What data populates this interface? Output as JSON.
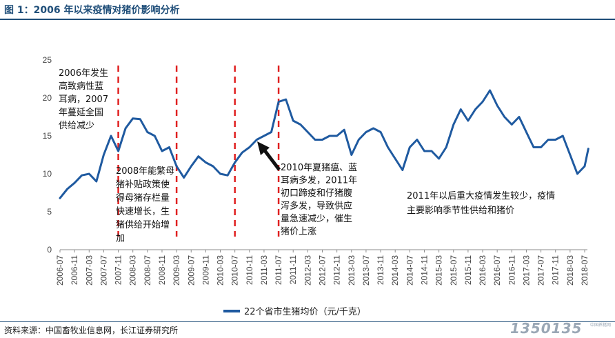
{
  "header": {
    "title": "图 1：2006 年以来疫情对猪价影响分析"
  },
  "footer": {
    "source": "资料来源：中国畜牧业信息网，长江证券研究所"
  },
  "watermark": {
    "text": "1350135",
    "sub": "中国养猪网"
  },
  "chart_data": {
    "type": "line",
    "title": "",
    "xlabel": "",
    "ylabel": "",
    "ylim": [
      0,
      25
    ],
    "yticks": [
      0,
      5,
      10,
      15,
      20,
      25
    ],
    "grid": false,
    "legend": "bottom",
    "line_color": "#1f5aa0",
    "marker_color": "#e02020",
    "x_tick_labels": [
      "2006-07",
      "2006-11",
      "2007-03",
      "2007-07",
      "2007-11",
      "2008-03",
      "2008-07",
      "2008-11",
      "2009-03",
      "2009-07",
      "2009-11",
      "2010-03",
      "2010-07",
      "2010-11",
      "2011-03",
      "2011-07",
      "2011-11",
      "2012-03",
      "2012-07",
      "2012-11",
      "2013-03",
      "2013-07",
      "2013-11",
      "2014-03",
      "2014-07",
      "2014-11",
      "2015-03",
      "2015-07",
      "2015-11",
      "2016-03",
      "2016-07",
      "2016-11",
      "2017-03",
      "2017-07",
      "2017-11",
      "2018-03",
      "2018-07"
    ],
    "series": [
      {
        "name": "22个省市生猪均价（元/千克）",
        "points": [
          [
            "2006-07",
            6.8
          ],
          [
            "2006-09",
            8.0
          ],
          [
            "2006-11",
            8.8
          ],
          [
            "2007-01",
            9.8
          ],
          [
            "2007-03",
            10.0
          ],
          [
            "2007-05",
            9.0
          ],
          [
            "2007-07",
            12.5
          ],
          [
            "2007-09",
            15.0
          ],
          [
            "2007-11",
            13.0
          ],
          [
            "2008-01",
            16.0
          ],
          [
            "2008-03",
            17.3
          ],
          [
            "2008-05",
            17.2
          ],
          [
            "2008-07",
            15.5
          ],
          [
            "2008-09",
            15.0
          ],
          [
            "2008-11",
            13.0
          ],
          [
            "2009-01",
            13.5
          ],
          [
            "2009-03",
            11.0
          ],
          [
            "2009-05",
            9.5
          ],
          [
            "2009-07",
            11.0
          ],
          [
            "2009-09",
            12.3
          ],
          [
            "2009-11",
            11.5
          ],
          [
            "2010-01",
            11.0
          ],
          [
            "2010-03",
            10.0
          ],
          [
            "2010-05",
            9.8
          ],
          [
            "2010-07",
            11.5
          ],
          [
            "2010-09",
            12.8
          ],
          [
            "2010-11",
            13.5
          ],
          [
            "2011-01",
            14.5
          ],
          [
            "2011-03",
            15.0
          ],
          [
            "2011-05",
            15.5
          ],
          [
            "2011-07",
            19.5
          ],
          [
            "2011-09",
            19.8
          ],
          [
            "2011-11",
            17.0
          ],
          [
            "2012-01",
            16.5
          ],
          [
            "2012-03",
            15.5
          ],
          [
            "2012-05",
            14.5
          ],
          [
            "2012-07",
            14.5
          ],
          [
            "2012-09",
            15.0
          ],
          [
            "2012-11",
            15.0
          ],
          [
            "2013-01",
            15.8
          ],
          [
            "2013-03",
            12.5
          ],
          [
            "2013-05",
            14.5
          ],
          [
            "2013-07",
            15.5
          ],
          [
            "2013-09",
            16.0
          ],
          [
            "2013-11",
            15.5
          ],
          [
            "2014-01",
            13.5
          ],
          [
            "2014-03",
            12.0
          ],
          [
            "2014-05",
            10.5
          ],
          [
            "2014-07",
            13.5
          ],
          [
            "2014-09",
            14.5
          ],
          [
            "2014-11",
            13.0
          ],
          [
            "2015-01",
            13.0
          ],
          [
            "2015-03",
            12.0
          ],
          [
            "2015-05",
            13.5
          ],
          [
            "2015-07",
            16.5
          ],
          [
            "2015-09",
            18.5
          ],
          [
            "2015-11",
            17.0
          ],
          [
            "2016-01",
            18.5
          ],
          [
            "2016-03",
            19.5
          ],
          [
            "2016-05",
            21.0
          ],
          [
            "2016-07",
            19.0
          ],
          [
            "2016-09",
            17.5
          ],
          [
            "2016-11",
            16.5
          ],
          [
            "2017-01",
            17.5
          ],
          [
            "2017-03",
            15.5
          ],
          [
            "2017-05",
            13.5
          ],
          [
            "2017-07",
            13.5
          ],
          [
            "2017-09",
            14.5
          ],
          [
            "2017-11",
            14.5
          ],
          [
            "2018-01",
            15.0
          ],
          [
            "2018-03",
            12.5
          ],
          [
            "2018-05",
            10.0
          ],
          [
            "2018-07",
            11.0
          ],
          [
            "2018-08",
            13.3
          ]
        ]
      }
    ],
    "markers_x": [
      "2007-11",
      "2009-03",
      "2010-07",
      "2011-07"
    ],
    "annotations": [
      {
        "text": [
          "2006年发生",
          "高致病性蓝",
          "耳病，2007",
          "年蔓延全国",
          "供给减少"
        ]
      },
      {
        "text": [
          "2008年能繁母",
          "猪补贴政策使",
          "得母猪存栏量",
          "快速增长，生",
          "猪供给开始增",
          "加"
        ]
      },
      {
        "text": [
          "2010年夏猪瘟、蓝",
          "耳病多发，2011年",
          "初口蹄疫和仔猪腹",
          "泻多发，导致供应",
          "量急速减少，催生",
          "猪价上涨"
        ]
      },
      {
        "text": [
          "2011年以后重大疫情发生较少，疫情",
          "主要影响季节性供给和猪价"
        ]
      }
    ]
  }
}
